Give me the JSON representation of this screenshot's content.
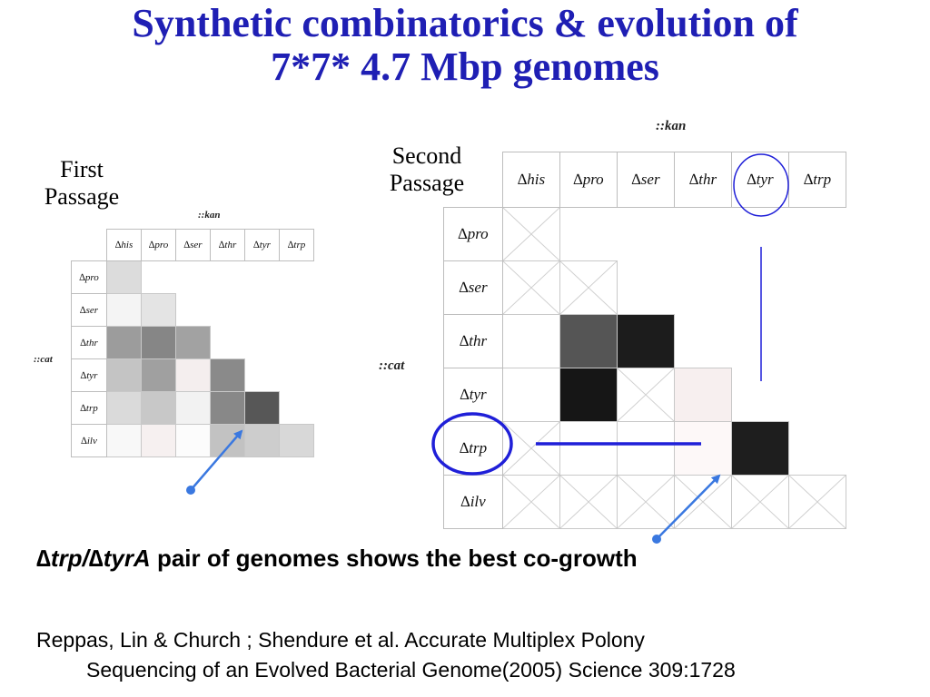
{
  "slide": {
    "title_line1": "Synthetic combinatorics & evolution of",
    "title_line2": "7*7* 4.7 Mbp genomes",
    "caption_italic": "∆trp/∆tyrA",
    "caption_rest": " pair of genomes shows the best co-growth",
    "reference_line1": "Reppas, Lin & Church ;     Shendure et al. Accurate Multiplex Polony",
    "reference_line2": "Sequencing of an Evolved Bacterial Genome(2005)  Science 309:1728"
  },
  "first_passage": {
    "label_line1": "First",
    "label_line2": "Passage",
    "col_marker": "::kan",
    "row_marker": "::cat",
    "columns": [
      "∆his",
      "∆pro",
      "∆ser",
      "∆thr",
      "∆tyr",
      "∆trp"
    ],
    "rows": [
      "∆pro",
      "∆ser",
      "∆thr",
      "∆tyr",
      "∆trp",
      "∆ilv"
    ],
    "cells": [
      [
        "#dcdcdc",
        null,
        null,
        null,
        null,
        null
      ],
      [
        "#f4f4f4",
        "#e4e4e4",
        null,
        null,
        null,
        null
      ],
      [
        "#9c9c9c",
        "#868686",
        "#a2a2a2",
        null,
        null,
        null
      ],
      [
        "#c4c4c4",
        "#a0a0a0",
        "#f4eeee",
        "#8a8a8a",
        null,
        null
      ],
      [
        "#dadada",
        "#c8c8c8",
        "#f2f2f2",
        "#888888",
        "#575757",
        null
      ],
      [
        "#f8f8f8",
        "#f6f0f0",
        "#fcfcfc",
        "#c2c2c2",
        "#cdcdcd",
        "#d8d8d8"
      ]
    ]
  },
  "second_passage": {
    "label_line1": "Second",
    "label_line2": "Passage",
    "col_marker": "::kan",
    "row_marker": "::cat",
    "columns": [
      "∆his",
      "∆pro",
      "∆ser",
      "∆thr",
      "∆tyr",
      "∆trp"
    ],
    "rows": [
      "∆pro",
      "∆ser",
      "∆thr",
      "∆tyr",
      "∆trp",
      "∆ilv"
    ],
    "cells": [
      [
        "x",
        null,
        null,
        null,
        null,
        null
      ],
      [
        "x",
        "x",
        null,
        null,
        null,
        null
      ],
      [
        "#ffffff",
        "#555555",
        "#1c1c1c",
        null,
        null,
        null
      ],
      [
        "#ffffff",
        "#161616",
        "x",
        "#f7efef",
        null,
        null
      ],
      [
        "x",
        "#ffffff",
        "#ffffff",
        "#fdf8f8",
        "#1e1e1e",
        null
      ],
      [
        "x",
        "x",
        "x",
        "x",
        "x",
        "x"
      ]
    ]
  },
  "colors": {
    "title": "#1f1fb4",
    "annotation": "#1f1fd8",
    "arrow": "#3a78e0"
  }
}
